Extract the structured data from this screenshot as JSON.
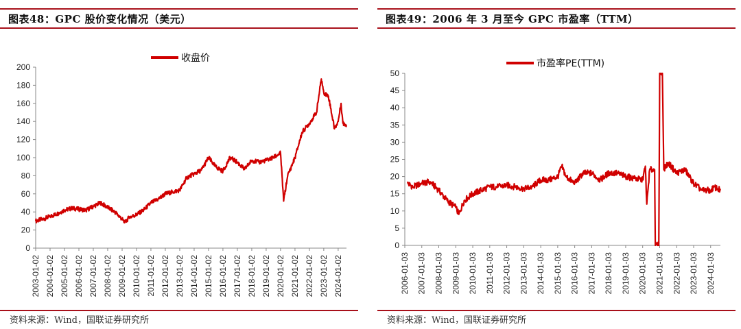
{
  "panels": [
    {
      "title": "图表48：GPC 股价变化情况（美元）",
      "source": "资料来源：Wind，国联证券研究所"
    },
    {
      "title": "图表49：2006 年 3 月至今 GPC 市盈率（TTM）",
      "source": "资料来源：Wind，国联证券研究所"
    }
  ],
  "colors": {
    "accent": "#a8101a",
    "series": "#d00000"
  },
  "chart_data": [
    {
      "type": "line",
      "title": "",
      "legend_position": "top",
      "grid": false,
      "x_start": "2003-01-02",
      "x_end": "2024-07-31",
      "ylim": [
        0,
        200
      ],
      "yticks": [
        "0",
        "20",
        "40",
        "60",
        "80",
        "100",
        "120",
        "140",
        "160",
        "180",
        "200"
      ],
      "xticks": [
        "2003-01-02",
        "2004-01-02",
        "2005-01-02",
        "2006-01-02",
        "2007-01-02",
        "2008-01-02",
        "2009-01-02",
        "2010-01-02",
        "2011-01-02",
        "2012-01-02",
        "2013-01-02",
        "2014-01-02",
        "2015-01-02",
        "2016-01-02",
        "2017-01-02",
        "2018-01-02",
        "2019-01-02",
        "2020-01-02",
        "2021-01-02",
        "2022-01-02",
        "2023-01-02",
        "2024-01-02"
      ],
      "series": [
        {
          "name": "收盘价",
          "points": [
            [
              "2003-01-02",
              30
            ],
            [
              "2003-07-01",
              32
            ],
            [
              "2004-01-02",
              35
            ],
            [
              "2004-07-01",
              38
            ],
            [
              "2005-01-02",
              42
            ],
            [
              "2005-07-01",
              44
            ],
            [
              "2006-01-02",
              43
            ],
            [
              "2006-07-01",
              42
            ],
            [
              "2007-01-02",
              46
            ],
            [
              "2007-07-01",
              50
            ],
            [
              "2008-01-02",
              45
            ],
            [
              "2008-07-01",
              40
            ],
            [
              "2009-01-02",
              32
            ],
            [
              "2009-03-09",
              28
            ],
            [
              "2009-07-01",
              34
            ],
            [
              "2010-01-02",
              37
            ],
            [
              "2010-07-01",
              42
            ],
            [
              "2011-01-02",
              50
            ],
            [
              "2011-07-01",
              54
            ],
            [
              "2012-01-02",
              60
            ],
            [
              "2012-07-01",
              62
            ],
            [
              "2013-01-02",
              64
            ],
            [
              "2013-07-01",
              78
            ],
            [
              "2014-01-02",
              82
            ],
            [
              "2014-07-01",
              86
            ],
            [
              "2015-01-02",
              100
            ],
            [
              "2015-07-01",
              90
            ],
            [
              "2016-01-02",
              85
            ],
            [
              "2016-07-01",
              100
            ],
            [
              "2017-01-02",
              95
            ],
            [
              "2017-07-01",
              87
            ],
            [
              "2018-01-02",
              97
            ],
            [
              "2018-07-01",
              95
            ],
            [
              "2019-01-02",
              97
            ],
            [
              "2019-07-01",
              100
            ],
            [
              "2020-01-02",
              105
            ],
            [
              "2020-03-20",
              52
            ],
            [
              "2020-07-01",
              80
            ],
            [
              "2021-01-02",
              100
            ],
            [
              "2021-07-01",
              128
            ],
            [
              "2022-01-02",
              138
            ],
            [
              "2022-07-01",
              150
            ],
            [
              "2022-11-01",
              187
            ],
            [
              "2023-01-02",
              172
            ],
            [
              "2023-05-01",
              168
            ],
            [
              "2023-10-01",
              132
            ],
            [
              "2024-01-02",
              140
            ],
            [
              "2024-03-15",
              160
            ],
            [
              "2024-05-01",
              138
            ],
            [
              "2024-07-31",
              136
            ]
          ]
        }
      ]
    },
    {
      "type": "line",
      "title": "",
      "legend_position": "top",
      "grid": false,
      "x_start": "2006-01-03",
      "x_end": "2024-07-31",
      "ylim": [
        0,
        50
      ],
      "yticks": [
        "0",
        "5",
        "10",
        "15",
        "20",
        "25",
        "30",
        "35",
        "40",
        "45",
        "50"
      ],
      "xticks": [
        "2006-01-03",
        "2007-01-03",
        "2008-01-03",
        "2009-01-03",
        "2010-01-03",
        "2011-01-03",
        "2012-01-03",
        "2013-01-03",
        "2014-01-03",
        "2015-01-03",
        "2016-01-03",
        "2017-01-03",
        "2018-01-03",
        "2019-01-03",
        "2020-01-03",
        "2021-01-03",
        "2022-01-03",
        "2023-01-03",
        "2024-01-03"
      ],
      "series": [
        {
          "name": "市盈率PE(TTM)",
          "points": [
            [
              "2006-03-01",
              18
            ],
            [
              "2006-07-01",
              17
            ],
            [
              "2007-01-03",
              18
            ],
            [
              "2007-07-01",
              18.5
            ],
            [
              "2008-01-03",
              16
            ],
            [
              "2008-07-01",
              13
            ],
            [
              "2009-01-03",
              11
            ],
            [
              "2009-03-09",
              9
            ],
            [
              "2009-07-01",
              13
            ],
            [
              "2010-01-03",
              15
            ],
            [
              "2010-07-01",
              16
            ],
            [
              "2011-01-03",
              17
            ],
            [
              "2011-07-01",
              17
            ],
            [
              "2012-01-03",
              17.5
            ],
            [
              "2012-07-01",
              17
            ],
            [
              "2013-01-03",
              16.5
            ],
            [
              "2013-07-01",
              17
            ],
            [
              "2014-01-03",
              19
            ],
            [
              "2014-07-01",
              19
            ],
            [
              "2015-01-03",
              20
            ],
            [
              "2015-04-01",
              23
            ],
            [
              "2015-07-01",
              20
            ],
            [
              "2016-01-03",
              18
            ],
            [
              "2016-07-01",
              21
            ],
            [
              "2017-01-03",
              21
            ],
            [
              "2017-07-01",
              19
            ],
            [
              "2018-01-03",
              21
            ],
            [
              "2018-07-01",
              21
            ],
            [
              "2019-01-03",
              20
            ],
            [
              "2019-07-01",
              19.5
            ],
            [
              "2020-01-03",
              19
            ],
            [
              "2020-03-01",
              23
            ],
            [
              "2020-04-01",
              12
            ],
            [
              "2020-06-01",
              22
            ],
            [
              "2020-09-15",
              22
            ],
            [
              "2020-10-01",
              0
            ],
            [
              "2020-12-15",
              0
            ],
            [
              "2021-01-03",
              50
            ],
            [
              "2021-03-01",
              50
            ],
            [
              "2021-04-01",
              22
            ],
            [
              "2021-07-01",
              24
            ],
            [
              "2022-01-03",
              21
            ],
            [
              "2022-07-01",
              22
            ],
            [
              "2023-01-03",
              18
            ],
            [
              "2023-07-01",
              16
            ],
            [
              "2024-01-03",
              16
            ],
            [
              "2024-03-15",
              17
            ],
            [
              "2024-07-31",
              16
            ]
          ]
        }
      ]
    }
  ]
}
